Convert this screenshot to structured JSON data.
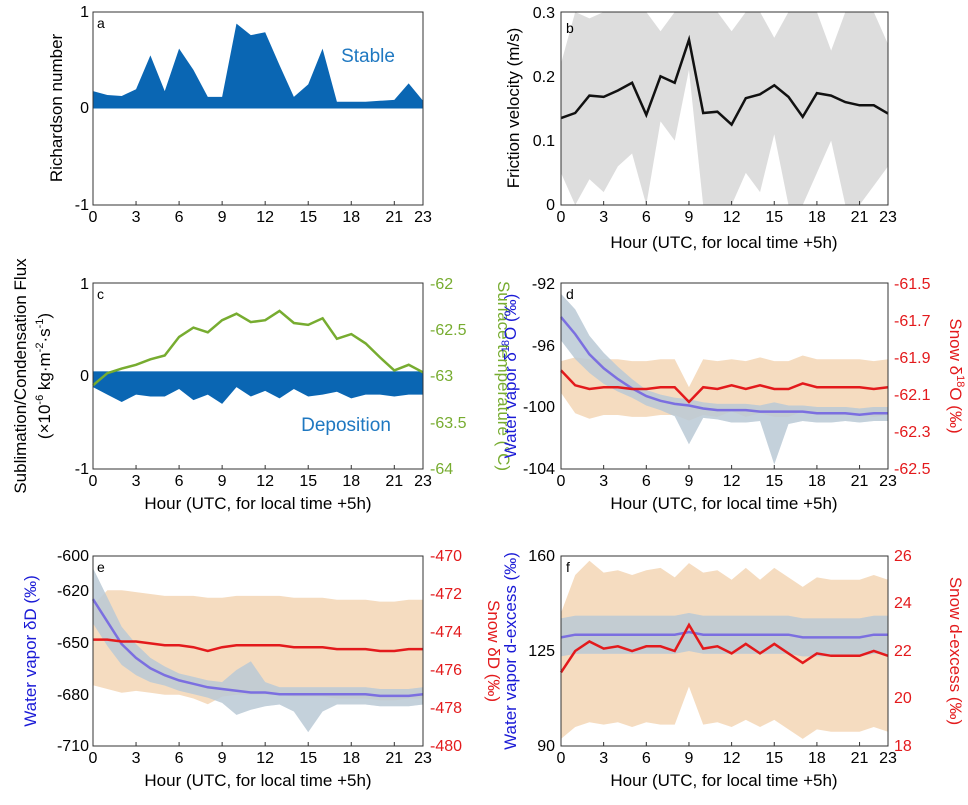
{
  "x_ticks": [
    "0",
    "3",
    "6",
    "9",
    "12",
    "15",
    "18",
    "21",
    "23"
  ],
  "hour_label": "Hour (UTC, for local time +5h)",
  "colors": {
    "ri_fill": "#0a66b3",
    "stable_text": "#1f78c1",
    "friction_line": "#111111",
    "band_gray": "#dddddd",
    "flux_fill": "#0a66b3",
    "temp_line": "#77ac30",
    "vapor_line": "#7b6fe0",
    "vapor_band": "#a9c9ee",
    "snow_line": "#e31a1c",
    "snow_band": "#f5dcc0",
    "overlap_band": "#c9c9bf",
    "left_axis_blue": "#1a1ad6",
    "right_axis_red": "#e31a1c"
  },
  "panels": {
    "a": {
      "letter": "a",
      "ylabel": "Richardson number",
      "yticks": [
        "1",
        "0",
        "-1"
      ],
      "annotation": "Stable"
    },
    "b": {
      "letter": "b",
      "ylabel": "Friction velocity (m/s)",
      "yticks": [
        "0.3",
        "0.2",
        "0.1",
        "0"
      ]
    },
    "c": {
      "letter": "c",
      "ylabel_line1": "Sublimation/Condensation Flux",
      "ylabel_line2": "(×10",
      "ylabel_sup1": "-6",
      "ylabel_mid": " kg·m",
      "ylabel_sup2": "-2",
      "ylabel_mid2": "·s",
      "ylabel_sup3": "-1",
      "ylabel_end": ")",
      "yticks": [
        "1",
        "0",
        "-1"
      ],
      "y2label": "Surface temperature (°C)",
      "y2ticks": [
        "-62",
        "-62.5",
        "-63",
        "-63.5",
        "-64"
      ],
      "annotation": "Deposition"
    },
    "d": {
      "letter": "d",
      "ylabel_pre": "Water vapor δ",
      "ylabel_sup": "18",
      "ylabel_post": "O (‰)",
      "yticks": [
        "-92",
        "-96",
        "-100",
        "-104"
      ],
      "y2label_pre": "Snow δ",
      "y2label_sup": "18",
      "y2label_post": "O (‰)",
      "y2ticks": [
        "-61.5",
        "-61.7",
        "-61.9",
        "-62.1",
        "-62.3",
        "-62.5"
      ]
    },
    "e": {
      "letter": "e",
      "ylabel": "Water vapor δD (‰)",
      "yticks": [
        "-600",
        "-620",
        "-650",
        "-680",
        "-710"
      ],
      "y2label": "Snow δD (‰)",
      "y2ticks": [
        "-470",
        "-472",
        "-474",
        "-476",
        "-478",
        "-480"
      ]
    },
    "f": {
      "letter": "f",
      "ylabel": "Water vapor d-excess (‰)",
      "yticks": [
        "160",
        "125",
        "90"
      ],
      "y2label": "Snow d-excess (‰)",
      "y2ticks": [
        "26",
        "24",
        "22",
        "20",
        "18"
      ]
    }
  },
  "chart_data": [
    {
      "type": "area",
      "panel": "a",
      "x": [
        0,
        1,
        2,
        3,
        4,
        5,
        6,
        7,
        8,
        9,
        10,
        11,
        12,
        13,
        14,
        15,
        16,
        17,
        18,
        19,
        20,
        21,
        22,
        23
      ],
      "values": [
        0.18,
        0.14,
        0.13,
        0.2,
        0.55,
        0.18,
        0.62,
        0.4,
        0.12,
        0.12,
        0.88,
        0.76,
        0.79,
        0.45,
        0.12,
        0.25,
        0.62,
        0.07,
        0.07,
        0.07,
        0.08,
        0.09,
        0.26,
        0.08
      ],
      "ylabel": "Richardson number",
      "ylim": [
        -1,
        1
      ],
      "xlim": [
        0,
        23
      ]
    },
    {
      "type": "line",
      "panel": "b",
      "x": [
        0,
        1,
        2,
        3,
        4,
        5,
        6,
        7,
        8,
        9,
        10,
        11,
        12,
        13,
        14,
        15,
        16,
        17,
        18,
        19,
        20,
        21,
        22,
        23
      ],
      "series": [
        {
          "values": [
            0.135,
            0.143,
            0.17,
            0.168,
            0.178,
            0.19,
            0.14,
            0.2,
            0.19,
            0.257,
            0.143,
            0.145,
            0.125,
            0.166,
            0.172,
            0.186,
            0.168,
            0.137,
            0.174,
            0.17,
            0.16,
            0.155,
            0.155,
            0.142
          ]
        },
        {
          "values_upper": [
            0.22,
            0.3,
            0.29,
            0.3,
            0.3,
            0.3,
            0.3,
            0.27,
            0.3,
            0.3,
            0.3,
            0.3,
            0.27,
            0.3,
            0.3,
            0.26,
            0.3,
            0.3,
            0.3,
            0.24,
            0.3,
            0.3,
            0.3,
            0.25
          ],
          "values_lower": [
            0.05,
            0.0,
            0.04,
            0.02,
            0.06,
            0.08,
            0.0,
            0.13,
            0.1,
            0.21,
            0.0,
            0.0,
            0.0,
            0.05,
            0.02,
            0.11,
            0.0,
            0.0,
            0.05,
            0.1,
            0.0,
            0.0,
            0.03,
            0.06
          ]
        }
      ],
      "xlabel": "Hour (UTC, for local time +5h)",
      "ylabel": "Friction velocity (m/s)",
      "ylim": [
        0,
        0.3
      ],
      "xlim": [
        0,
        23
      ]
    },
    {
      "type": "area",
      "panel": "c",
      "x": [
        0,
        1,
        2,
        3,
        4,
        5,
        6,
        7,
        8,
        9,
        10,
        11,
        12,
        13,
        14,
        15,
        16,
        17,
        18,
        19,
        20,
        21,
        22,
        23
      ],
      "series": [
        {
          "name": "flux",
          "values": [
            -0.12,
            -0.2,
            -0.28,
            -0.2,
            -0.22,
            -0.22,
            -0.14,
            -0.26,
            -0.2,
            -0.3,
            -0.12,
            -0.22,
            -0.16,
            -0.24,
            -0.14,
            -0.22,
            -0.2,
            -0.17,
            -0.24,
            -0.2,
            -0.2,
            -0.22,
            -0.2,
            -0.2
          ]
        },
        {
          "name": "surface_temperature",
          "axis": "right",
          "values": [
            -63.1,
            -62.97,
            -62.92,
            -62.88,
            -62.82,
            -62.78,
            -62.58,
            -62.48,
            -62.53,
            -62.4,
            -62.33,
            -62.42,
            -62.4,
            -62.3,
            -62.43,
            -62.45,
            -62.38,
            -62.6,
            -62.55,
            -62.65,
            -62.8,
            -62.94,
            -62.88,
            -62.96
          ]
        }
      ],
      "xlabel": "Hour (UTC, for local time +5h)",
      "ylim": [
        -1,
        1
      ],
      "y2lim": [
        -64,
        -62
      ],
      "xlim": [
        0,
        23
      ]
    },
    {
      "type": "line",
      "panel": "d",
      "x": [
        0,
        1,
        2,
        3,
        4,
        5,
        6,
        7,
        8,
        9,
        10,
        11,
        12,
        13,
        14,
        15,
        16,
        17,
        18,
        19,
        20,
        21,
        22,
        23
      ],
      "series": [
        {
          "name": "vapor",
          "values": [
            -94.2,
            -95.3,
            -96.6,
            -97.5,
            -98.2,
            -98.8,
            -99.3,
            -99.6,
            -99.8,
            -99.9,
            -100.1,
            -100.2,
            -100.2,
            -100.2,
            -100.3,
            -100.3,
            -100.3,
            -100.3,
            -100.4,
            -100.4,
            -100.4,
            -100.5,
            -100.4,
            -100.4
          ]
        },
        {
          "name": "snow",
          "axis": "right",
          "values": [
            -61.97,
            -62.05,
            -62.07,
            -62.06,
            -62.06,
            -62.07,
            -62.07,
            -62.06,
            -62.06,
            -62.14,
            -62.06,
            -62.07,
            -62.05,
            -62.07,
            -62.05,
            -62.07,
            -62.07,
            -62.04,
            -62.06,
            -62.06,
            -62.06,
            -62.06,
            -62.07,
            -62.06
          ]
        }
      ],
      "xlabel": "Hour (UTC, for local time +5h)",
      "ylim": [
        -104,
        -92
      ],
      "y2lim": [
        -62.5,
        -61.5
      ],
      "xlim": [
        0,
        23
      ]
    },
    {
      "type": "line",
      "panel": "e",
      "x": [
        0,
        1,
        2,
        3,
        4,
        5,
        6,
        7,
        8,
        9,
        10,
        11,
        12,
        13,
        14,
        15,
        16,
        17,
        18,
        19,
        20,
        21,
        22,
        23
      ],
      "series": [
        {
          "name": "vapor",
          "values": [
            -625,
            -638,
            -651,
            -659,
            -665,
            -669,
            -672,
            -674,
            -676,
            -677,
            -678,
            -679,
            -679,
            -680,
            -680,
            -680,
            -680,
            -680,
            -680,
            -680,
            -681,
            -681,
            -681,
            -680
          ]
        },
        {
          "name": "snow",
          "axis": "right",
          "values": [
            -474.4,
            -474.4,
            -474.5,
            -474.5,
            -474.6,
            -474.7,
            -474.7,
            -474.8,
            -475.0,
            -474.8,
            -474.7,
            -474.7,
            -474.7,
            -474.7,
            -474.8,
            -474.8,
            -474.8,
            -474.9,
            -474.9,
            -474.9,
            -475.0,
            -475.0,
            -474.9,
            -474.9
          ]
        }
      ],
      "xlabel": "Hour (UTC, for local time +5h)",
      "ylim": [
        -710,
        -600
      ],
      "y2lim": [
        -480,
        -470
      ],
      "xlim": [
        0,
        23
      ]
    },
    {
      "type": "line",
      "panel": "f",
      "x": [
        0,
        1,
        2,
        3,
        4,
        5,
        6,
        7,
        8,
        9,
        10,
        11,
        12,
        13,
        14,
        15,
        16,
        17,
        18,
        19,
        20,
        21,
        22,
        23
      ],
      "series": [
        {
          "name": "vapor",
          "values": [
            130,
            131,
            131,
            131,
            131,
            131,
            131,
            131,
            131,
            132,
            131,
            131,
            131,
            131,
            131,
            131,
            131,
            130,
            130,
            130,
            130,
            130,
            131,
            131
          ]
        },
        {
          "name": "snow",
          "axis": "right",
          "values": [
            21.1,
            22.0,
            22.4,
            22.1,
            22.2,
            22.0,
            22.2,
            22.2,
            22.0,
            23.1,
            22.1,
            22.2,
            21.9,
            22.3,
            21.9,
            22.3,
            21.9,
            21.5,
            21.9,
            21.8,
            21.8,
            21.8,
            22.0,
            21.8
          ]
        }
      ],
      "xlabel": "Hour (UTC, for local time +5h)",
      "ylim": [
        90,
        160
      ],
      "y2lim": [
        18,
        26
      ],
      "xlim": [
        0,
        23
      ]
    }
  ]
}
